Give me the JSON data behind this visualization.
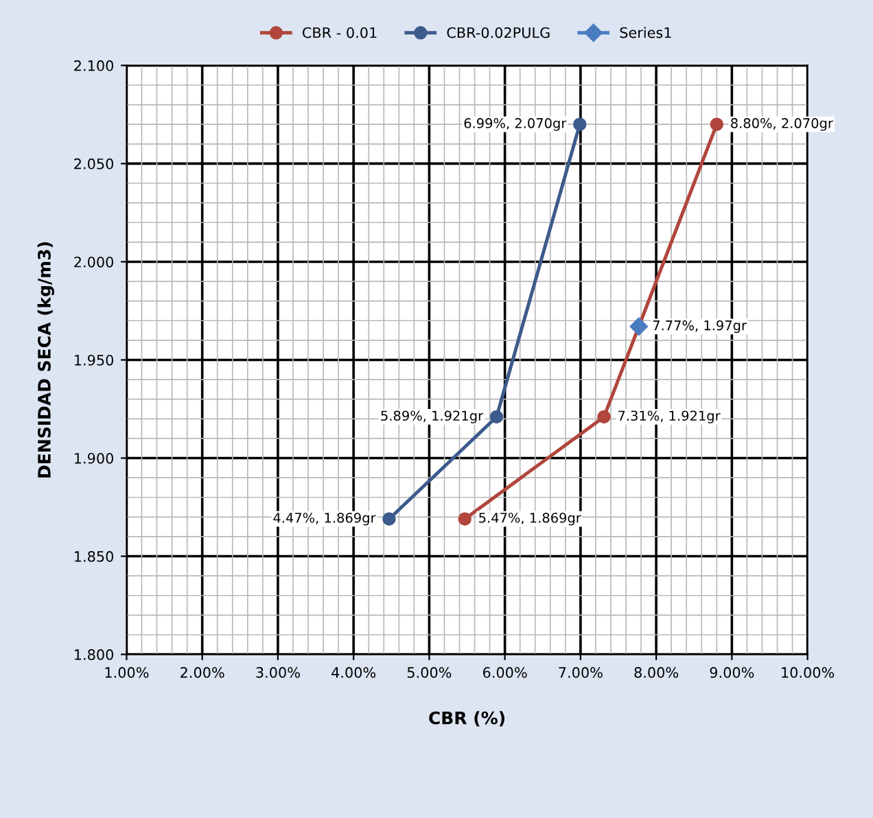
{
  "chart_data": {
    "type": "line",
    "xlabel": "CBR (%)",
    "ylabel": "DENSIDAD SECA (kg/m3)",
    "series": [
      {
        "name": "CBR - 0.01",
        "color": "#b0463c",
        "x": [
          5.47,
          7.31,
          8.8
        ],
        "values": [
          1.869,
          1.921,
          2.07
        ],
        "value_labels": [
          "5.47%, 1.869gr",
          "7.31%, 1.921gr",
          "8.80%, 2.070gr"
        ]
      },
      {
        "name": "CBR-0.02PULG",
        "color": "#3c5a8c",
        "x": [
          4.47,
          5.89,
          6.99
        ],
        "values": [
          1.869,
          1.921,
          2.07
        ],
        "value_labels": [
          "4.47%, 1.869gr",
          "5.89%, 1.921gr",
          "6.99%, 2.070gr"
        ]
      },
      {
        "name": "Series1",
        "color": "#4a7cc0",
        "marker": "diamond",
        "x": [
          7.77
        ],
        "values": [
          1.967
        ],
        "value_labels": [
          "7.77%, 1.97gr"
        ]
      }
    ],
    "xlim": [
      1,
      10
    ],
    "xticks": [
      {
        "value": 1,
        "label": "1.00%"
      },
      {
        "value": 2,
        "label": "2.00%"
      },
      {
        "value": 3,
        "label": "3.00%"
      },
      {
        "value": 4,
        "label": "4.00%"
      },
      {
        "value": 5,
        "label": "5.00%"
      },
      {
        "value": 6,
        "label": "6.00%"
      },
      {
        "value": 7,
        "label": "7.00%"
      },
      {
        "value": 8,
        "label": "8.00%"
      },
      {
        "value": 9,
        "label": "9.00%"
      },
      {
        "value": 10,
        "label": "10.00%"
      }
    ],
    "ylim": [
      1.8,
      2.1
    ],
    "yticks": [
      {
        "value": 1.8,
        "label": "1.800"
      },
      {
        "value": 1.85,
        "label": "1.850"
      },
      {
        "value": 1.9,
        "label": "1.900"
      },
      {
        "value": 1.95,
        "label": "1.950"
      },
      {
        "value": 2.0,
        "label": "2.000"
      },
      {
        "value": 2.05,
        "label": "2.050"
      },
      {
        "value": 2.1,
        "label": "2.100"
      }
    ],
    "grid": true,
    "legend": "top",
    "marker": "circle"
  }
}
